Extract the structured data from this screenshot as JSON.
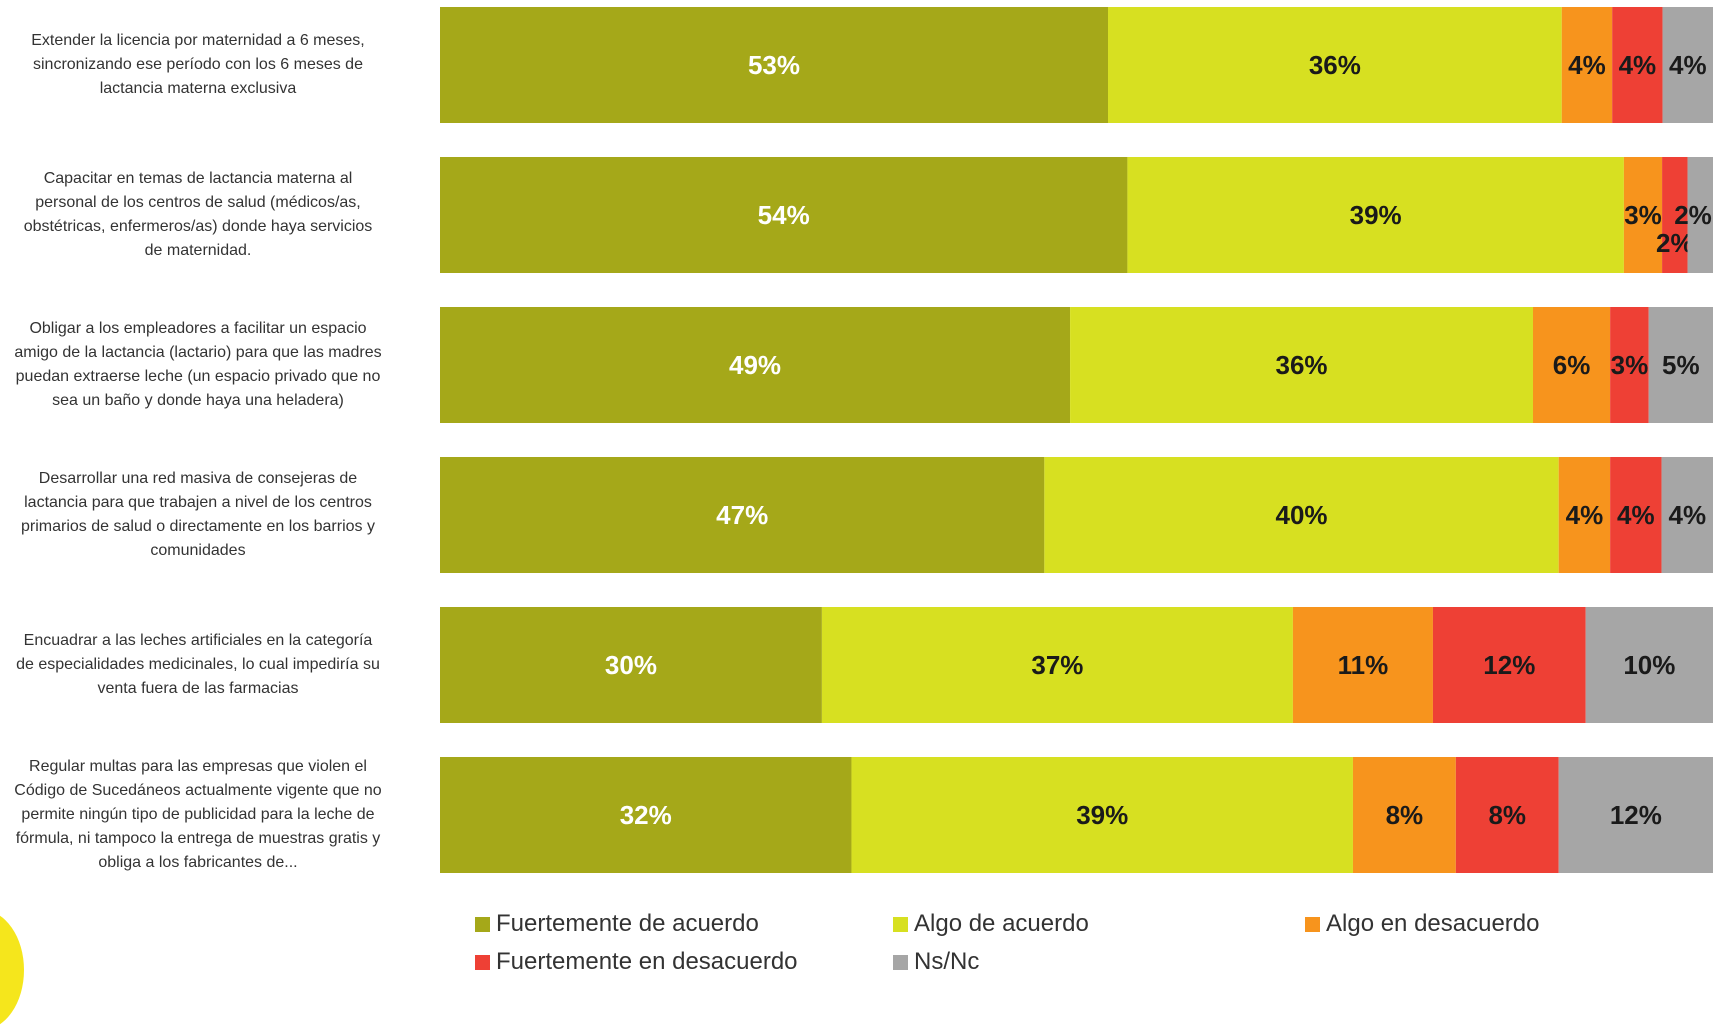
{
  "chart_data": {
    "type": "bar",
    "orientation": "horizontal",
    "stacked": true,
    "percent_axis": [
      0,
      100
    ],
    "value_unit": "%",
    "categories": [
      "Extender la licencia por maternidad a 6 meses, sincronizando ese período con los 6 meses de lactancia materna exclusiva",
      "Capacitar en temas de lactancia materna al personal de los centros de salud (médicos/as, obstétricas, enfermeros/as) donde haya servicios de maternidad.",
      "Obligar a los empleadores a facilitar un espacio amigo de la lactancia (lactario) para que las madres puedan extraerse leche (un espacio privado que no sea un baño y donde haya una heladera)",
      "Desarrollar una red masiva de consejeras de lactancia para que trabajen a nivel de los centros primarios de salud o directamente en los barrios y comunidades",
      "Encuadrar a las leches artificiales en la categoría de especialidades medicinales, lo cual impediría su venta fuera de las farmacias",
      "Regular multas para las empresas que violen el Código de Sucedáneos actualmente vigente que no permite ningún tipo de publicidad para la leche de fórmula, ni tampoco la entrega de muestras gratis y obliga a los fabricantes de..."
    ],
    "series": [
      {
        "name": "Fuertemente de acuerdo",
        "color": "#a5a819",
        "label_color": "#ffffff",
        "values": [
          53,
          54,
          49,
          47,
          30,
          32
        ]
      },
      {
        "name": "Algo de acuerdo",
        "color": "#d7e021",
        "label_color": "#1a1a1a",
        "values": [
          36,
          39,
          36,
          40,
          37,
          39
        ]
      },
      {
        "name": "Algo en desacuerdo",
        "color": "#f7941d",
        "label_color": "#1a1a1a",
        "values": [
          4,
          3,
          6,
          4,
          11,
          8
        ]
      },
      {
        "name": "Fuertemente en desacuerdo",
        "color": "#ee4035",
        "label_color": "#1a1a1a",
        "values": [
          4,
          2,
          3,
          4,
          12,
          8
        ]
      },
      {
        "name": "Ns/Nc",
        "color": "#a6a6a6",
        "label_color": "#1a1a1a",
        "values": [
          4,
          2,
          5,
          4,
          10,
          12
        ]
      }
    ],
    "legend_position": "bottom",
    "grid": false
  }
}
